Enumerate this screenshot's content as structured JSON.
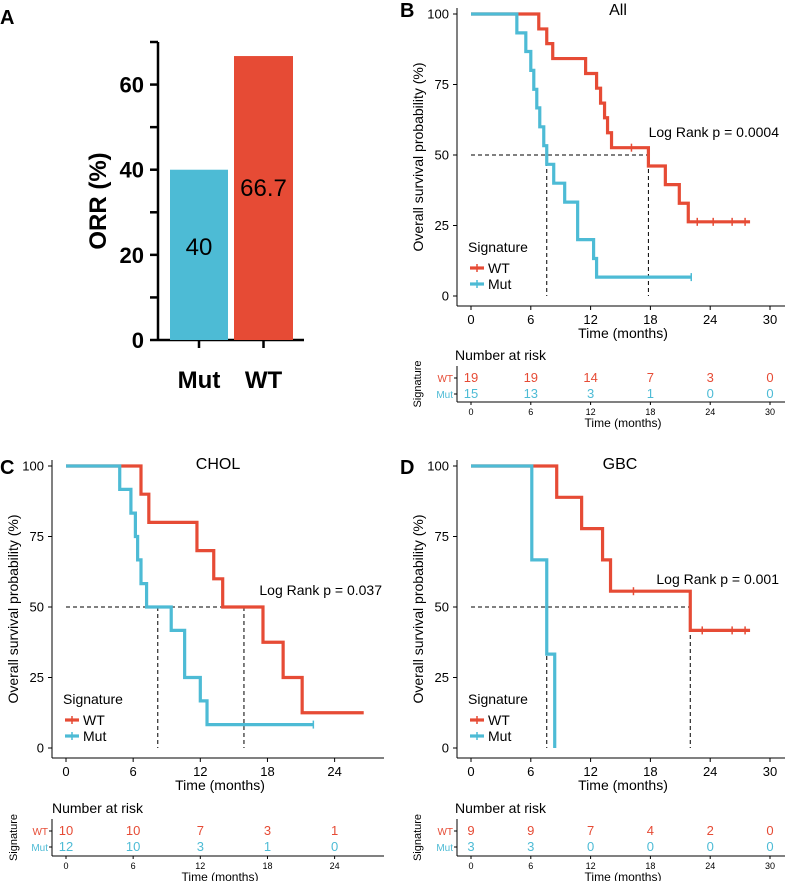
{
  "colors": {
    "wt": "#E64B35",
    "mut": "#4DBBD5",
    "axis": "#000000"
  },
  "chart_data": [
    {
      "panel": "A",
      "type": "bar",
      "ylabel": "ORR (%)",
      "categories": [
        "Mut",
        "WT"
      ],
      "values": [
        40,
        66.7
      ],
      "value_labels": [
        "40",
        "66.7"
      ],
      "ylim": [
        0,
        70
      ],
      "yticks": [
        0,
        20,
        40,
        60
      ]
    },
    {
      "panel": "B",
      "type": "line",
      "subtype": "kaplan-meier",
      "title": "All",
      "xlabel": "Time (months)",
      "ylabel": "Overall survival probability (%)",
      "xlim": [
        0,
        30
      ],
      "ylim": [
        0,
        100
      ],
      "xticks": [
        0,
        6,
        12,
        18,
        24,
        30
      ],
      "yticks": [
        0,
        25,
        50,
        75,
        100
      ],
      "annotation": "Log Rank p = 0.0004",
      "legend_title": "Signature",
      "median_lines": [
        7.6,
        17.8
      ],
      "series": [
        {
          "name": "WT",
          "steps": [
            [
              0,
              100
            ],
            [
              6.8,
              94.7
            ],
            [
              7.6,
              89.5
            ],
            [
              8.2,
              84.2
            ],
            [
              11.5,
              78.9
            ],
            [
              12.6,
              73.7
            ],
            [
              13.0,
              68.4
            ],
            [
              13.4,
              63.2
            ],
            [
              13.7,
              57.9
            ],
            [
              14.1,
              52.6
            ],
            [
              17.8,
              46.1
            ],
            [
              19.5,
              39.5
            ],
            [
              20.9,
              32.9
            ],
            [
              21.8,
              26.3
            ],
            [
              28,
              26.3
            ]
          ],
          "censors": [
            [
              16.1,
              52.6
            ],
            [
              22.7,
              26.3
            ],
            [
              24.3,
              26.3
            ],
            [
              26.2,
              26.3
            ],
            [
              27.5,
              26.3
            ]
          ]
        },
        {
          "name": "Mut",
          "steps": [
            [
              0,
              100
            ],
            [
              4.6,
              93.3
            ],
            [
              5.5,
              86.7
            ],
            [
              6.0,
              80.0
            ],
            [
              6.3,
              73.3
            ],
            [
              6.6,
              66.7
            ],
            [
              6.9,
              60.0
            ],
            [
              7.3,
              53.3
            ],
            [
              7.6,
              46.7
            ],
            [
              8.3,
              40.0
            ],
            [
              9.4,
              33.3
            ],
            [
              10.7,
              20.0
            ],
            [
              12.3,
              13.3
            ],
            [
              12.6,
              6.7
            ],
            [
              22.1,
              6.7
            ]
          ],
          "censors": [
            [
              22.1,
              6.7
            ]
          ]
        }
      ],
      "risk_table": {
        "title": "Number at risk",
        "ylabel": "Signature",
        "xlabel": "Time (months)",
        "times": [
          0,
          6,
          12,
          18,
          24,
          30
        ],
        "rows": [
          {
            "name": "WT",
            "values": [
              19,
              19,
              14,
              7,
              3,
              0
            ]
          },
          {
            "name": "Mut",
            "values": [
              15,
              13,
              3,
              1,
              0,
              0
            ]
          }
        ]
      }
    },
    {
      "panel": "C",
      "type": "line",
      "subtype": "kaplan-meier",
      "title": "CHOL",
      "xlabel": "Time (months)",
      "ylabel": "Overall survival probability (%)",
      "xlim": [
        0,
        26
      ],
      "ylim": [
        0,
        100
      ],
      "xticks": [
        0,
        6,
        12,
        18,
        24
      ],
      "yticks": [
        0,
        25,
        50,
        75,
        100
      ],
      "annotation": "Log Rank p = 0.037",
      "legend_title": "Signature",
      "median_lines": [
        8.2,
        15.9
      ],
      "series": [
        {
          "name": "WT",
          "steps": [
            [
              0,
              100
            ],
            [
              6.7,
              90
            ],
            [
              7.4,
              80
            ],
            [
              11.7,
              70
            ],
            [
              13.2,
              60
            ],
            [
              14.0,
              50
            ],
            [
              17.6,
              37.5
            ],
            [
              19.4,
              25
            ],
            [
              21.1,
              12.5
            ],
            [
              26.6,
              12.5
            ]
          ],
          "censors": []
        },
        {
          "name": "Mut",
          "steps": [
            [
              0,
              100
            ],
            [
              4.8,
              91.7
            ],
            [
              5.8,
              83.3
            ],
            [
              6.2,
              75
            ],
            [
              6.4,
              66.7
            ],
            [
              6.7,
              58.3
            ],
            [
              7.2,
              50
            ],
            [
              9.4,
              41.7
            ],
            [
              10.6,
              25
            ],
            [
              12.0,
              16.7
            ],
            [
              12.6,
              8.3
            ],
            [
              22.1,
              8.3
            ]
          ],
          "censors": [
            [
              22.1,
              8.3
            ]
          ]
        }
      ],
      "risk_table": {
        "title": "Number at risk",
        "ylabel": "Signature",
        "xlabel": "Time (months)",
        "times": [
          0,
          6,
          12,
          18,
          24
        ],
        "rows": [
          {
            "name": "WT",
            "values": [
              10,
              10,
              7,
              3,
              1
            ]
          },
          {
            "name": "Mut",
            "values": [
              12,
              10,
              3,
              1,
              0
            ]
          }
        ]
      }
    },
    {
      "panel": "D",
      "type": "line",
      "subtype": "kaplan-meier",
      "title": "GBC",
      "xlabel": "Time (months)",
      "ylabel": "Overall survival probability (%)",
      "xlim": [
        0,
        30
      ],
      "ylim": [
        0,
        100
      ],
      "xticks": [
        0,
        6,
        12,
        18,
        24,
        30
      ],
      "yticks": [
        0,
        25,
        50,
        75,
        100
      ],
      "annotation": "Log Rank p = 0.001",
      "legend_title": "Signature",
      "median_lines": [
        7.6,
        22.0
      ],
      "series": [
        {
          "name": "WT",
          "steps": [
            [
              0,
              100
            ],
            [
              8.6,
              88.9
            ],
            [
              11.1,
              77.8
            ],
            [
              13.2,
              66.7
            ],
            [
              14.0,
              55.6
            ],
            [
              22.0,
              41.7
            ],
            [
              28,
              41.7
            ]
          ],
          "censors": [
            [
              16.3,
              55.6
            ],
            [
              23.2,
              41.7
            ],
            [
              26.2,
              41.7
            ],
            [
              27.5,
              41.7
            ]
          ]
        },
        {
          "name": "Mut",
          "steps": [
            [
              0,
              100
            ],
            [
              6.1,
              66.7
            ],
            [
              7.6,
              33.3
            ],
            [
              8.4,
              0
            ]
          ],
          "censors": []
        }
      ],
      "risk_table": {
        "title": "Number at risk",
        "ylabel": "Signature",
        "xlabel": "Time (months)",
        "times": [
          0,
          6,
          12,
          18,
          24,
          30
        ],
        "rows": [
          {
            "name": "WT",
            "values": [
              9,
              9,
              7,
              4,
              2,
              0
            ]
          },
          {
            "name": "Mut",
            "values": [
              3,
              3,
              0,
              0,
              0,
              0
            ]
          }
        ]
      }
    }
  ]
}
